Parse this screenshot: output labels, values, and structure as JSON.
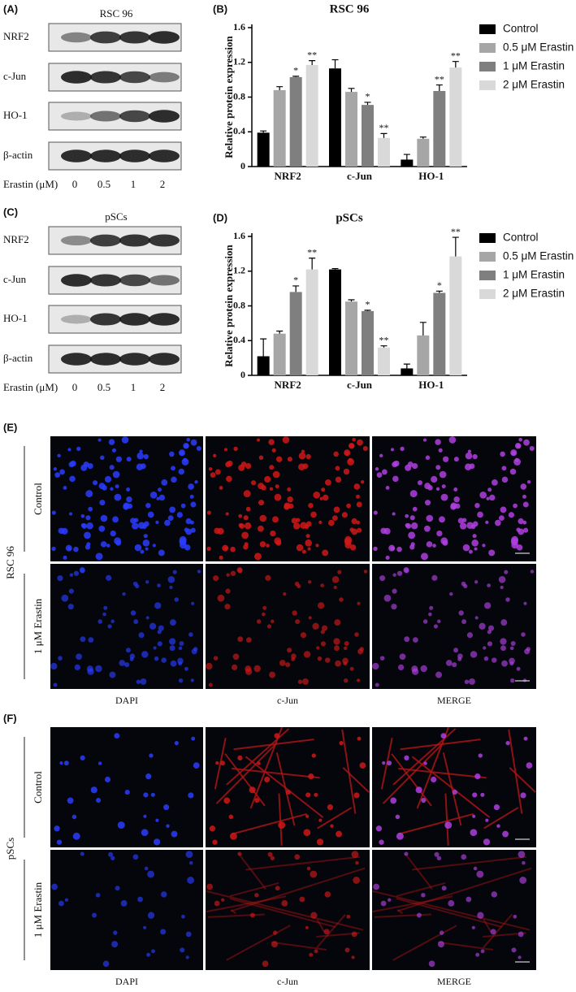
{
  "panels": {
    "A": {
      "label": "(A)",
      "title": "RSC 96",
      "rows": [
        "NRF2",
        "c-Jun",
        "HO-1",
        "β-actin"
      ],
      "treatment_label": "Erastin (μM)",
      "lanes": [
        "0",
        "0.5",
        "1",
        "2"
      ]
    },
    "C": {
      "label": "(C)",
      "title": "pSCs",
      "rows": [
        "NRF2",
        "c-Jun",
        "HO-1",
        "β-actin"
      ],
      "treatment_label": "Erastin (μM)",
      "lanes": [
        "0",
        "0.5",
        "1",
        "2"
      ]
    },
    "E": {
      "label": "(E)",
      "cell_line": "RSC 96",
      "conditions": [
        "Control",
        "1 μM Erastin"
      ],
      "channels": [
        "DAPI",
        "c-Jun",
        "MERGE"
      ]
    },
    "F": {
      "label": "(F)",
      "cell_line": "pSCs",
      "conditions": [
        "Control",
        "1 μM Erastin"
      ],
      "channels": [
        "DAPI",
        "c-Jun",
        "MERGE"
      ]
    }
  },
  "chart_data": [
    {
      "type": "bar",
      "label": "(B)",
      "title": "RSC 96",
      "y_label": "Relative protein expression",
      "categories": [
        "NRF2",
        "c-Jun",
        "HO-1"
      ],
      "ylim": [
        0,
        1.6
      ],
      "yticks": [
        0,
        0.4,
        0.8,
        1.2,
        1.6
      ],
      "legend": "right",
      "series": [
        {
          "name": "Control",
          "color": "#000000",
          "values": [
            0.39,
            1.13,
            0.08
          ],
          "errors": [
            0.02,
            0.1,
            0.06
          ]
        },
        {
          "name": "0.5 μM Erastin",
          "color": "#a6a6a6",
          "values": [
            0.88,
            0.86,
            0.32
          ],
          "errors": [
            0.04,
            0.04,
            0.02
          ]
        },
        {
          "name": "1 μM Erastin",
          "color": "#7f7f7f",
          "values": [
            1.03,
            0.71,
            0.87
          ],
          "errors": [
            0.01,
            0.03,
            0.07
          ],
          "labels": [
            "*",
            "*",
            "**"
          ]
        },
        {
          "name": "2 μM Erastin",
          "color": "#d9d9d9",
          "values": [
            1.17,
            0.33,
            1.14
          ],
          "errors": [
            0.05,
            0.05,
            0.07
          ],
          "labels": [
            "**",
            "**",
            "**"
          ]
        }
      ]
    },
    {
      "type": "bar",
      "label": "(D)",
      "title": "pSCs",
      "y_label": "Relative protein expression",
      "categories": [
        "NRF2",
        "c-Jun",
        "HO-1"
      ],
      "ylim": [
        0,
        1.6
      ],
      "yticks": [
        0,
        0.4,
        0.8,
        1.2,
        1.6
      ],
      "legend": "right",
      "series": [
        {
          "name": "Control",
          "color": "#000000",
          "values": [
            0.22,
            1.22,
            0.08
          ],
          "errors": [
            0.2,
            0.01,
            0.05
          ]
        },
        {
          "name": "0.5 μM Erastin",
          "color": "#a6a6a6",
          "values": [
            0.48,
            0.85,
            0.46
          ],
          "errors": [
            0.03,
            0.02,
            0.15
          ]
        },
        {
          "name": "1 μM Erastin",
          "color": "#7f7f7f",
          "values": [
            0.96,
            0.74,
            0.95
          ],
          "errors": [
            0.07,
            0.01,
            0.02
          ],
          "labels": [
            "*",
            "*",
            "*"
          ]
        },
        {
          "name": "2 μM Erastin",
          "color": "#d9d9d9",
          "values": [
            1.22,
            0.32,
            1.37
          ],
          "errors": [
            0.13,
            0.02,
            0.22
          ],
          "labels": [
            "**",
            "**",
            "**"
          ]
        }
      ]
    }
  ]
}
